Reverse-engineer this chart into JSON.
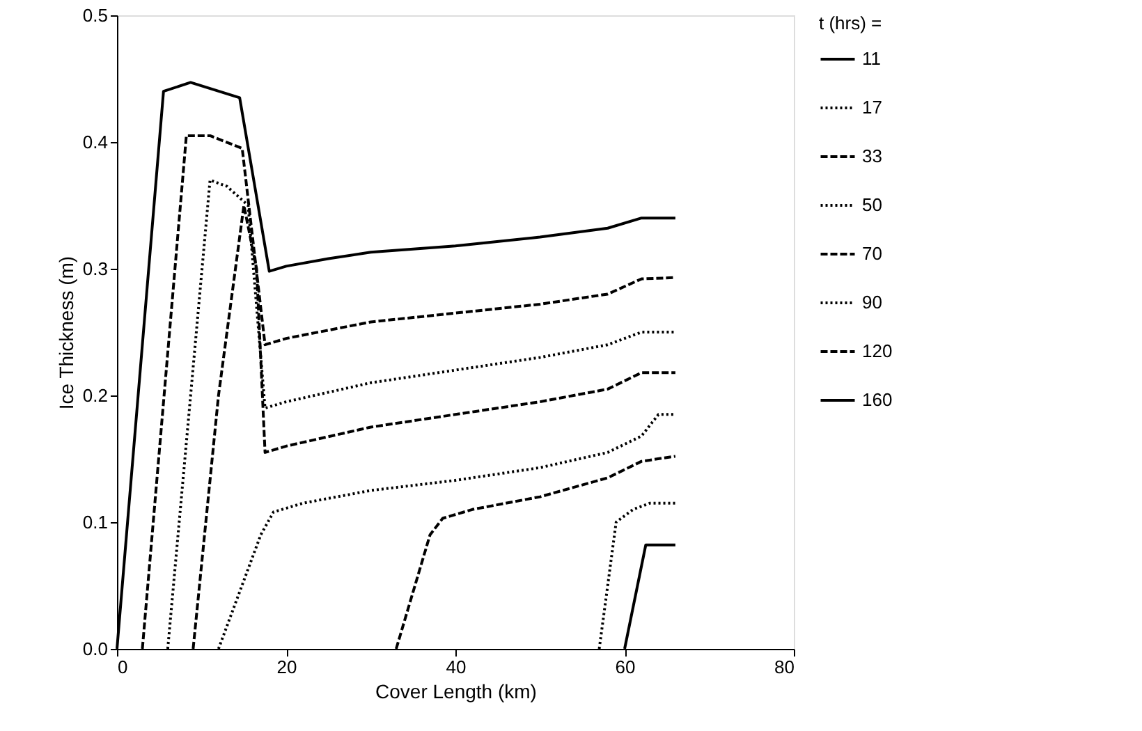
{
  "chart_data": {
    "type": "line",
    "xlabel": "Cover Length (km)",
    "ylabel": "Ice Thickness (m)",
    "legend_title": "t (hrs) =",
    "xlim": [
      0,
      80
    ],
    "xticks": [
      0,
      20,
      40,
      60,
      80
    ],
    "ylim": [
      0,
      0.5
    ],
    "yticks": [
      {
        "value": 0,
        "label": "0.0"
      },
      0.1,
      0.2,
      0.3,
      0.4,
      0.5
    ],
    "grid": false,
    "legend": "right",
    "marker": "none",
    "series": [
      {
        "name": "11",
        "color": "#000000",
        "line_style": "solid",
        "x": [
          60,
          62.5,
          66
        ],
        "values": [
          0,
          0.082,
          0.082
        ]
      },
      {
        "name": "17",
        "color": "#000000",
        "line_style": "dotted",
        "x": [
          57,
          59,
          61,
          63,
          66
        ],
        "values": [
          0,
          0.1,
          0.11,
          0.115,
          0.115
        ]
      },
      {
        "name": "33",
        "color": "#000000",
        "line_style": "dashed",
        "x": [
          33,
          37,
          38.5,
          42,
          50,
          58,
          62,
          66
        ],
        "values": [
          0,
          0.09,
          0.103,
          0.11,
          0.12,
          0.135,
          0.148,
          0.152
        ]
      },
      {
        "name": "50",
        "color": "#000000",
        "line_style": "dotted",
        "x": [
          12,
          17,
          18.5,
          22,
          30,
          40,
          50,
          58,
          62,
          64,
          66
        ],
        "values": [
          0,
          0.09,
          0.108,
          0.115,
          0.125,
          0.133,
          0.143,
          0.155,
          0.168,
          0.185,
          0.185
        ]
      },
      {
        "name": "70",
        "color": "#000000",
        "line_style": "dashed",
        "x": [
          9,
          12,
          15,
          16.5,
          17.5,
          20,
          30,
          40,
          50,
          58,
          62,
          66
        ],
        "values": [
          0,
          0.2,
          0.35,
          0.3,
          0.155,
          0.16,
          0.175,
          0.185,
          0.195,
          0.205,
          0.218,
          0.218
        ]
      },
      {
        "name": "90",
        "color": "#000000",
        "line_style": "dotted",
        "x": [
          6,
          11,
          13,
          15.5,
          17.5,
          20,
          30,
          40,
          50,
          58,
          62,
          66
        ],
        "values": [
          0,
          0.37,
          0.365,
          0.35,
          0.19,
          0.195,
          0.21,
          0.22,
          0.23,
          0.24,
          0.25,
          0.25
        ]
      },
      {
        "name": "120",
        "color": "#000000",
        "line_style": "dashed",
        "x": [
          3,
          8.2,
          11,
          14.8,
          17.5,
          20,
          30,
          40,
          50,
          58,
          62,
          66
        ],
        "values": [
          0,
          0.405,
          0.405,
          0.395,
          0.24,
          0.245,
          0.258,
          0.265,
          0.272,
          0.28,
          0.292,
          0.293
        ]
      },
      {
        "name": "160",
        "color": "#000000",
        "line_style": "solid",
        "x": [
          0,
          5.5,
          8.7,
          14.5,
          18,
          20,
          25,
          30,
          40,
          50,
          58,
          62,
          66
        ],
        "values": [
          0,
          0.44,
          0.447,
          0.435,
          0.298,
          0.302,
          0.308,
          0.313,
          0.318,
          0.325,
          0.332,
          0.34,
          0.34
        ]
      }
    ]
  }
}
